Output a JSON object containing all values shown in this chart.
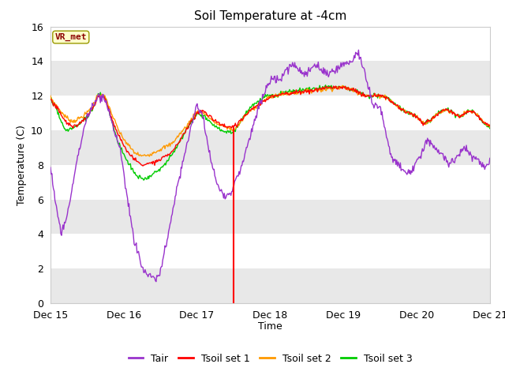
{
  "title": "Soil Temperature at -4cm",
  "xlabel": "Time",
  "ylabel": "Temperature (C)",
  "ylim": [
    0,
    16
  ],
  "yticks": [
    0,
    2,
    4,
    6,
    8,
    10,
    12,
    14,
    16
  ],
  "xlim_days": [
    0,
    6
  ],
  "xtick_labels": [
    "Dec 15",
    "Dec 16",
    "Dec 17",
    "Dec 18",
    "Dec 19",
    "Dec 20",
    "Dec 21"
  ],
  "xtick_positions": [
    0,
    1,
    2,
    3,
    4,
    5,
    6
  ],
  "vline_x": 2.5,
  "vline_ymax": 10.2,
  "vline_color": "#ff0000",
  "annotation_label": "VR_met",
  "annotation_color": "#8b0000",
  "annotation_bg": "#ffffcc",
  "annotation_border": "#999900",
  "bg_color": "#ffffff",
  "plot_bg": "#ffffff",
  "band_color": "#e8e8e8",
  "colors": {
    "Tair": "#9933cc",
    "Tsoil1": "#ff0000",
    "Tsoil2": "#ff9900",
    "Tsoil3": "#00cc00"
  },
  "legend_labels": [
    "Tair",
    "Tsoil set 1",
    "Tsoil set 2",
    "Tsoil set 3"
  ]
}
